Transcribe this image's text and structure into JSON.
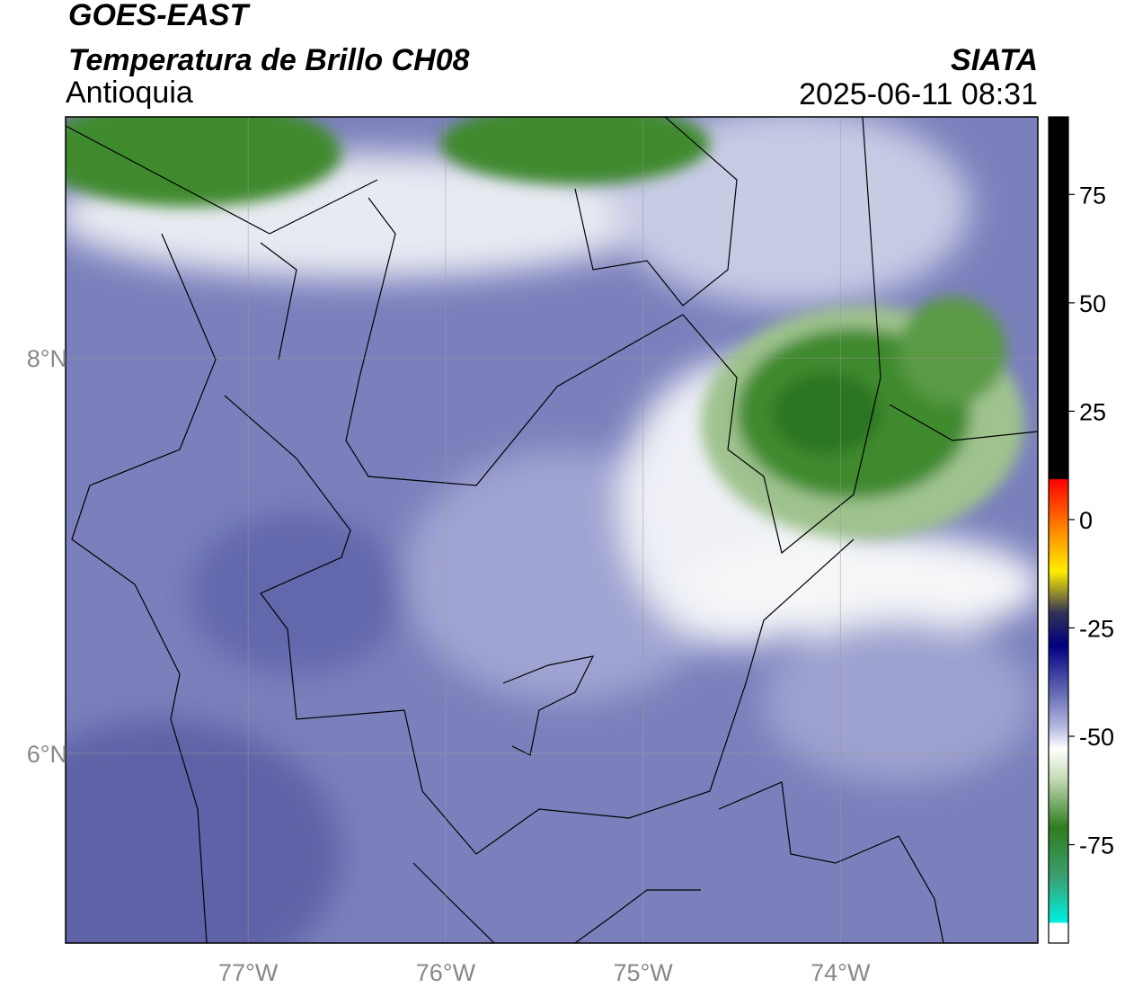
{
  "header": {
    "title": "GOES-EAST",
    "subtitle": "Temperatura de Brillo CH08",
    "region": "Antioquia",
    "source": "SIATA",
    "timestamp": "2025-06-11 08:31"
  },
  "map": {
    "xlim": [
      -77.925,
      -73.0
    ],
    "ylim": [
      5.04,
      9.22
    ],
    "xticks": [
      {
        "value": -77,
        "label": "77°W"
      },
      {
        "value": -76,
        "label": "76°W"
      },
      {
        "value": -75,
        "label": "75°W"
      },
      {
        "value": -74,
        "label": "74°W"
      }
    ],
    "yticks": [
      {
        "value": 8,
        "label": "8°N"
      },
      {
        "value": 6,
        "label": "6°N"
      }
    ]
  },
  "colorbar": {
    "ylim": [
      -97.7,
      92.9
    ],
    "yticks": [
      75,
      50,
      25,
      0,
      -25,
      -50,
      -75
    ]
  }
}
